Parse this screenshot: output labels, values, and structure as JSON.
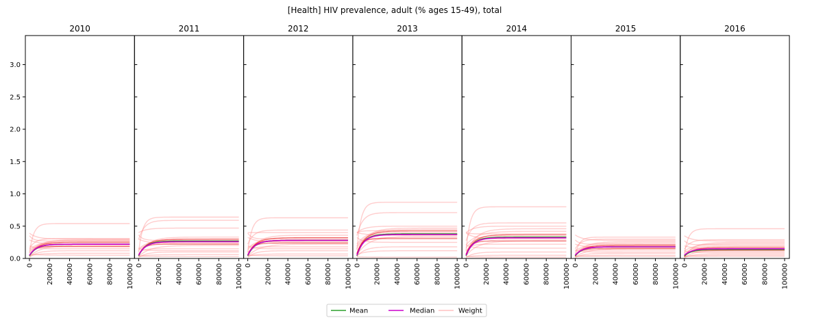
{
  "chart_data": {
    "type": "line",
    "title": "[Health] HIV prevalence, adult (% ages 15-49), total",
    "xlabel": "",
    "ylabel": "",
    "xlim": [
      0,
      100000
    ],
    "ylim": [
      0,
      3.45
    ],
    "x_ticks": [
      0,
      20000,
      40000,
      60000,
      80000,
      100000
    ],
    "x_tick_labels": [
      "0",
      "20000",
      "40000",
      "60000",
      "80000",
      "100000"
    ],
    "y_ticks": [
      0.0,
      0.5,
      1.0,
      1.5,
      2.0,
      2.5,
      3.0
    ],
    "y_tick_labels": [
      "0.0",
      "0.5",
      "1.0",
      "1.5",
      "2.0",
      "2.5",
      "3.0"
    ],
    "grid": false,
    "legend": {
      "placement": "bottom-center",
      "entries": [
        {
          "label": "Mean",
          "color": "#2ca02c"
        },
        {
          "label": "Median",
          "color": "#cc00cc"
        },
        {
          "label": "Weight",
          "color": "#ffc0c0"
        }
      ]
    },
    "colors": {
      "mean": "#2ca02c",
      "median": "#cc00cc",
      "weight": "#ff9090",
      "weight_dark": "#e00000"
    },
    "panels": [
      {
        "title": "2010",
        "mean": 0.22,
        "median": 0.22,
        "weights": [
          0.54,
          0.31,
          0.3,
          0.29,
          0.28,
          0.27,
          0.25,
          0.23,
          0.22,
          0.2,
          0.18,
          0.15,
          0.12,
          0.08,
          0.05
        ]
      },
      {
        "title": "2011",
        "mean": 0.27,
        "median": 0.26,
        "weights": [
          0.64,
          0.59,
          0.47,
          0.33,
          0.3,
          0.28,
          0.27,
          0.25,
          0.23,
          0.2,
          0.15,
          0.12,
          0.1,
          0.06,
          0.03
        ]
      },
      {
        "title": "2012",
        "mean": 0.28,
        "median": 0.28,
        "weights": [
          0.63,
          0.44,
          0.4,
          0.36,
          0.32,
          0.3,
          0.28,
          0.27,
          0.25,
          0.22,
          0.18,
          0.15,
          0.12,
          0.07,
          0.04
        ]
      },
      {
        "title": "2013",
        "mean": 0.38,
        "median": 0.37,
        "weights": [
          0.87,
          0.71,
          0.5,
          0.47,
          0.45,
          0.43,
          0.4,
          0.38,
          0.36,
          0.34,
          0.3,
          0.25,
          0.18,
          0.12,
          0.02
        ]
      },
      {
        "title": "2014",
        "mean": 0.33,
        "median": 0.32,
        "weights": [
          0.8,
          0.55,
          0.5,
          0.46,
          0.42,
          0.38,
          0.35,
          0.33,
          0.3,
          0.27,
          0.22,
          0.16,
          0.1,
          0.05,
          0.02
        ]
      },
      {
        "title": "2015",
        "mean": 0.18,
        "median": 0.18,
        "weights": [
          0.33,
          0.3,
          0.28,
          0.26,
          0.24,
          0.22,
          0.2,
          0.19,
          0.17,
          0.15,
          0.13,
          0.1,
          0.08,
          0.05,
          0.03
        ]
      },
      {
        "title": "2016",
        "mean": 0.14,
        "median": 0.15,
        "weights": [
          0.46,
          0.29,
          0.27,
          0.25,
          0.23,
          0.21,
          0.19,
          0.17,
          0.15,
          0.13,
          0.11,
          0.09,
          0.07,
          0.05,
          0.03
        ]
      }
    ]
  }
}
